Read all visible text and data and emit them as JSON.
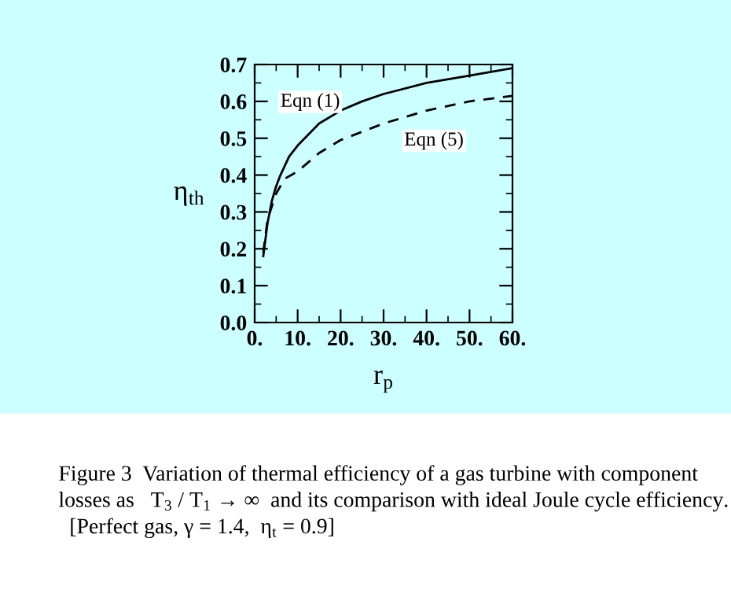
{
  "chart_data": {
    "type": "line",
    "xlabel": "r$_{p}$",
    "ylabel": "η$_{th}$",
    "series": [
      {
        "color": "#000000",
        "line_style": "solid",
        "x": [
          2,
          3,
          4,
          5,
          6,
          8,
          10,
          15,
          20,
          25,
          30,
          40,
          50,
          60
        ],
        "values": [
          0.18,
          0.27,
          0.33,
          0.37,
          0.4,
          0.45,
          0.48,
          0.54,
          0.575,
          0.6,
          0.62,
          0.65,
          0.67,
          0.69
        ]
      },
      {
        "color": "#000000",
        "line_style": "dashed",
        "x": [
          2,
          3,
          5,
          7,
          10,
          15,
          20,
          30,
          40,
          50,
          60
        ],
        "values": [
          0.19,
          0.28,
          0.35,
          0.39,
          0.41,
          0.46,
          0.495,
          0.54,
          0.575,
          0.6,
          0.615
        ]
      }
    ],
    "annotations": [
      "Eqn (1)",
      "Eqn (5)",
      "Figure 3  Variation of thermal efficiency of a gas turbine with component losses as   T$_{3}$ / T$_{1}$ → ∞  and its comparison with ideal Joule cycle efficiency.   [Perfect gas, γ = 1.4,  η$_{t}$ = 0.9]"
    ],
    "xlim": [
      0,
      60
    ],
    "ylim": [
      0,
      0.7
    ],
    "xticks": [
      {
        "value": 0,
        "label": "0."
      },
      {
        "value": 10,
        "label": "10."
      },
      {
        "value": 20,
        "label": "20."
      },
      {
        "value": 30,
        "label": "30."
      },
      {
        "value": 40,
        "label": "40."
      },
      {
        "value": 50,
        "label": "50."
      },
      {
        "value": 60,
        "label": "60."
      }
    ],
    "yticks": [
      {
        "value": 0,
        "label": "0.0"
      },
      {
        "value": 0.1,
        "label": "0.1"
      },
      {
        "value": 0.2,
        "label": "0.2"
      },
      {
        "value": 0.3,
        "label": "0.3"
      },
      {
        "value": 0.4,
        "label": "0.4"
      },
      {
        "value": 0.5,
        "label": "0.5"
      },
      {
        "value": 0.6,
        "label": "0.6"
      },
      {
        "value": 0.7,
        "label": "0.7"
      }
    ],
    "grid": false,
    "legend": false
  }
}
